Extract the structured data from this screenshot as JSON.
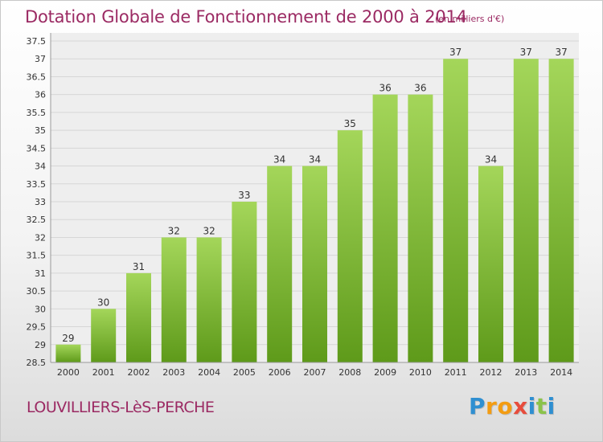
{
  "header": {
    "title": "Dotation Globale de Fonctionnement de 2000 à 2014",
    "units": "(en milliers d'€)"
  },
  "footer": {
    "commune": "LOUVILLIERS-LèS-PERCHE",
    "logo_letters": [
      "P",
      "r",
      "o",
      "x",
      "i",
      "t",
      "i"
    ],
    "logo_colors": [
      "#2f8fd1",
      "#f39c12",
      "#f39c12",
      "#e74c3c",
      "#2f8fd1",
      "#8bc34a",
      "#2f8fd1"
    ]
  },
  "chart_data": {
    "type": "bar",
    "categories": [
      "2000",
      "2001",
      "2002",
      "2003",
      "2004",
      "2005",
      "2006",
      "2007",
      "2008",
      "2009",
      "2010",
      "2011",
      "2012",
      "2013",
      "2014"
    ],
    "values": [
      29,
      30,
      31,
      32,
      32,
      33,
      34,
      34,
      35,
      36,
      36,
      37,
      34,
      37,
      37
    ],
    "value_labels": [
      "29",
      "30",
      "31",
      "32",
      "32",
      "33",
      "34",
      "34",
      "35",
      "36",
      "36",
      "37",
      "34",
      "37",
      "37"
    ],
    "title": "Dotation Globale de Fonctionnement de 2000 à 2014",
    "xlabel": "",
    "ylabel": "",
    "ylim": [
      28.5,
      37.5
    ],
    "yticks": [
      28.5,
      29,
      29.5,
      30,
      30.5,
      31,
      31.5,
      32,
      32.5,
      33,
      33.5,
      34,
      34.5,
      35,
      35.5,
      36,
      36.5,
      37,
      37.5
    ],
    "ytick_labels": [
      "28.5",
      "29",
      "29.5",
      "30",
      "30.5",
      "31",
      "31.5",
      "32",
      "32.5",
      "33",
      "33.5",
      "34",
      "34.5",
      "35",
      "35.5",
      "36",
      "36.5",
      "37",
      "37.5"
    ],
    "grid": true,
    "bar_color_top": "#a4d65a",
    "bar_color_bottom": "#5e9a1a"
  }
}
